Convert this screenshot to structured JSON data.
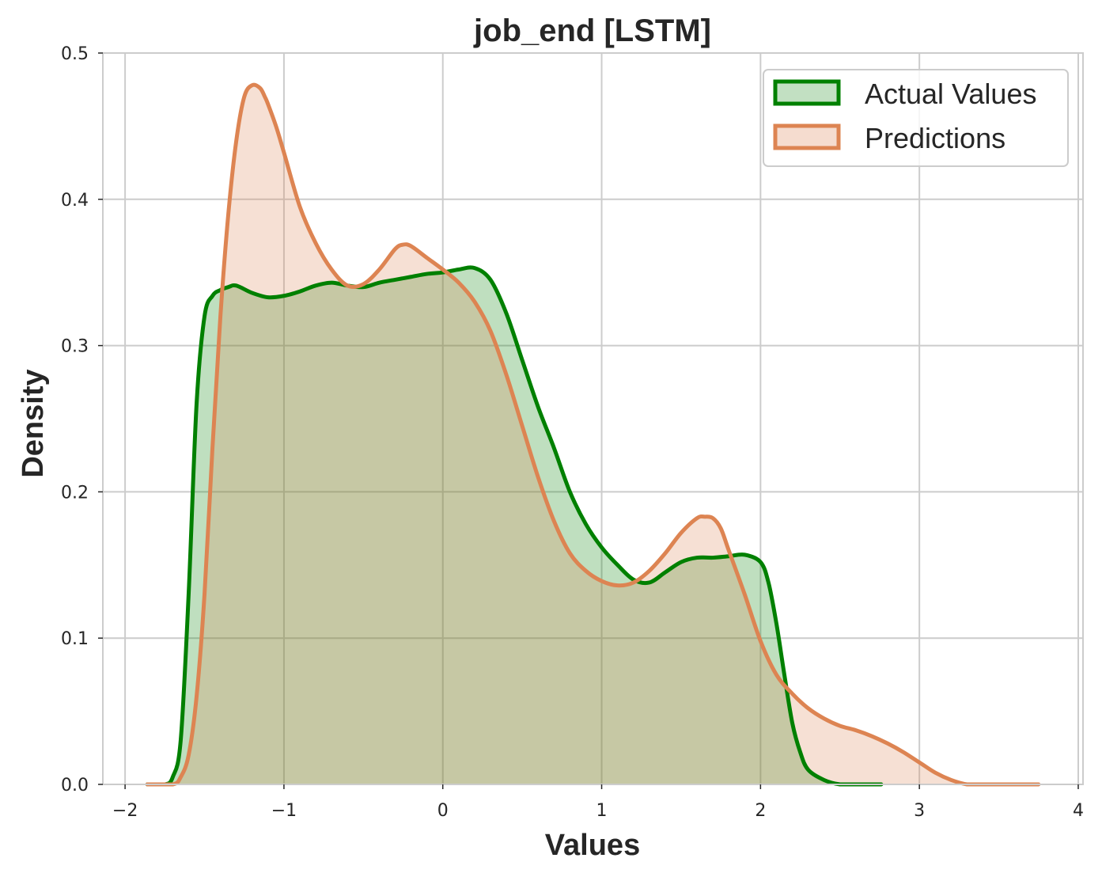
{
  "chart_data": {
    "type": "area",
    "title": "job_end [LSTM]",
    "xlabel": "Values",
    "ylabel": "Density",
    "xlim": [
      -2.14,
      4.03
    ],
    "ylim": [
      0,
      0.5
    ],
    "x_ticks": [
      -2,
      -1,
      0,
      1,
      2,
      3,
      4
    ],
    "x_tick_labels": [
      "−2",
      "−1",
      "0",
      "1",
      "2",
      "3",
      "4"
    ],
    "y_ticks": [
      0.0,
      0.1,
      0.2,
      0.3,
      0.4,
      0.5
    ],
    "y_tick_labels": [
      "0.0",
      "0.1",
      "0.2",
      "0.3",
      "0.4",
      "0.5"
    ],
    "grid": true,
    "legend_position": "top-right",
    "series": [
      {
        "name": "Actual Values",
        "color": "#008000",
        "fill_color": "#c2e0c2",
        "x": [
          -1.86,
          -1.75,
          -1.7,
          -1.65,
          -1.6,
          -1.55,
          -1.5,
          -1.45,
          -1.4,
          -1.35,
          -1.3,
          -1.2,
          -1.1,
          -1.0,
          -0.9,
          -0.8,
          -0.7,
          -0.6,
          -0.5,
          -0.4,
          -0.3,
          -0.2,
          -0.1,
          0.0,
          0.1,
          0.2,
          0.3,
          0.4,
          0.5,
          0.6,
          0.7,
          0.8,
          0.9,
          1.0,
          1.1,
          1.2,
          1.3,
          1.4,
          1.5,
          1.6,
          1.7,
          1.8,
          1.9,
          2.0,
          2.05,
          2.1,
          2.15,
          2.2,
          2.25,
          2.3,
          2.4,
          2.5,
          2.6,
          2.76
        ],
        "values": [
          0.0,
          0.0,
          0.005,
          0.03,
          0.13,
          0.26,
          0.32,
          0.334,
          0.338,
          0.34,
          0.341,
          0.336,
          0.333,
          0.334,
          0.337,
          0.341,
          0.343,
          0.341,
          0.34,
          0.343,
          0.345,
          0.347,
          0.349,
          0.35,
          0.352,
          0.353,
          0.345,
          0.322,
          0.29,
          0.258,
          0.23,
          0.2,
          0.178,
          0.162,
          0.15,
          0.14,
          0.138,
          0.145,
          0.152,
          0.155,
          0.155,
          0.156,
          0.157,
          0.152,
          0.138,
          0.11,
          0.075,
          0.042,
          0.022,
          0.01,
          0.003,
          0.0,
          0.0,
          0.0
        ]
      },
      {
        "name": "Predictions",
        "color": "#dd8452",
        "fill_color": "#f5dccf",
        "x": [
          -1.86,
          -1.7,
          -1.65,
          -1.6,
          -1.55,
          -1.5,
          -1.45,
          -1.4,
          -1.35,
          -1.3,
          -1.25,
          -1.2,
          -1.15,
          -1.12,
          -1.1,
          -1.05,
          -1.0,
          -0.9,
          -0.8,
          -0.7,
          -0.6,
          -0.5,
          -0.4,
          -0.3,
          -0.25,
          -0.2,
          -0.1,
          0.0,
          0.1,
          0.2,
          0.3,
          0.4,
          0.5,
          0.6,
          0.7,
          0.8,
          0.9,
          1.0,
          1.1,
          1.2,
          1.3,
          1.4,
          1.5,
          1.6,
          1.65,
          1.7,
          1.75,
          1.8,
          1.9,
          2.0,
          2.1,
          2.2,
          2.3,
          2.4,
          2.5,
          2.6,
          2.7,
          2.8,
          2.9,
          3.0,
          3.1,
          3.2,
          3.3,
          3.4,
          3.5,
          3.75
        ],
        "values": [
          0.0,
          0.0,
          0.005,
          0.02,
          0.06,
          0.13,
          0.23,
          0.32,
          0.39,
          0.44,
          0.47,
          0.478,
          0.476,
          0.47,
          0.465,
          0.45,
          0.432,
          0.395,
          0.37,
          0.352,
          0.341,
          0.342,
          0.352,
          0.366,
          0.369,
          0.368,
          0.36,
          0.352,
          0.343,
          0.33,
          0.31,
          0.28,
          0.245,
          0.21,
          0.18,
          0.158,
          0.146,
          0.139,
          0.136,
          0.138,
          0.146,
          0.158,
          0.172,
          0.182,
          0.183,
          0.182,
          0.175,
          0.16,
          0.13,
          0.098,
          0.075,
          0.062,
          0.052,
          0.045,
          0.04,
          0.037,
          0.033,
          0.028,
          0.022,
          0.015,
          0.008,
          0.003,
          0.0,
          0.0,
          0.0,
          0.0
        ]
      }
    ]
  }
}
